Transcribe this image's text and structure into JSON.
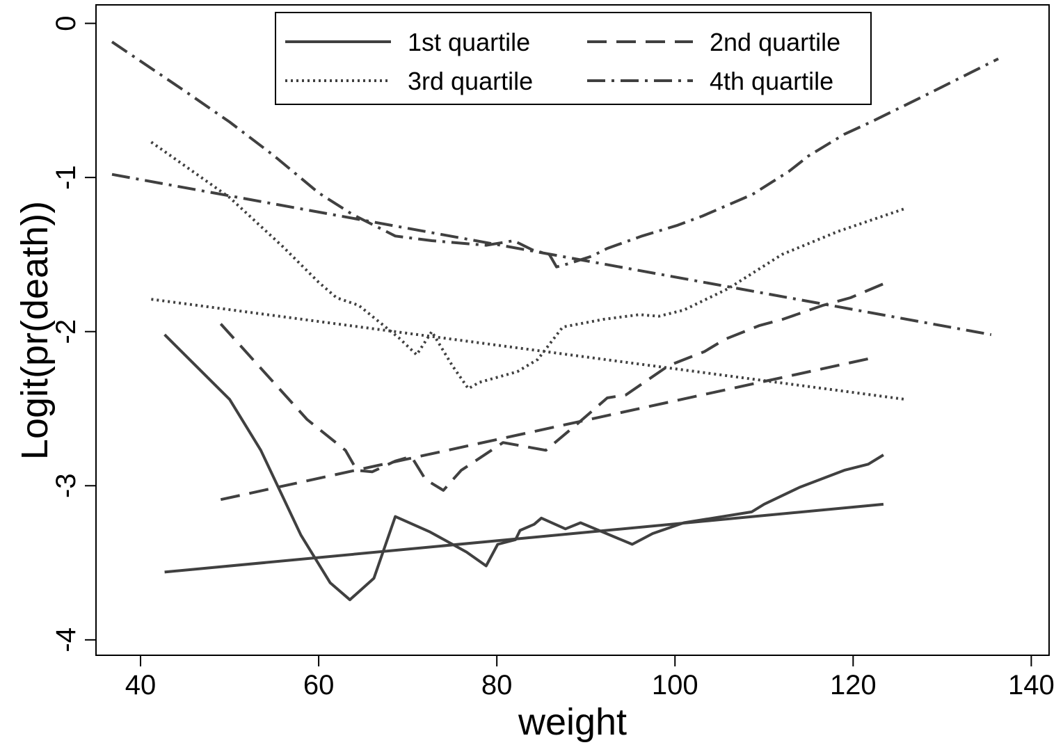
{
  "chart_data": {
    "type": "line",
    "xlabel": "weight",
    "ylabel": "Logit(pr(death))",
    "xlim": [
      35,
      142
    ],
    "ylim": [
      -4.1,
      0.12
    ],
    "xticks": [
      40,
      60,
      80,
      100,
      120,
      140
    ],
    "yticks": [
      0,
      -1,
      -2,
      -3,
      -4
    ],
    "legend": {
      "placement": "top",
      "entries": [
        "1st quartile",
        "2nd quartile",
        "3rd quartile",
        "4th quartile"
      ]
    },
    "grid": false,
    "line_color": "#404040",
    "series": [
      {
        "name": "1st quartile",
        "style": "solid",
        "curves": [
          {
            "x": [
              42.7,
              50,
              53.5,
              58,
              61.3,
              63.5,
              66.2,
              68.6,
              72.5,
              76.6,
              78.8,
              80.1,
              82.1,
              82.6,
              84.2,
              85,
              87.7,
              89.4,
              95.2,
              97.5,
              101,
              108.6,
              110,
              114,
              119,
              121.7,
              123.4
            ],
            "y": [
              -2.02,
              -2.44,
              -2.77,
              -3.32,
              -3.63,
              -3.74,
              -3.6,
              -3.2,
              -3.3,
              -3.43,
              -3.52,
              -3.38,
              -3.35,
              -3.29,
              -3.25,
              -3.21,
              -3.28,
              -3.24,
              -3.38,
              -3.31,
              -3.24,
              -3.17,
              -3.12,
              -3.01,
              -2.9,
              -2.86,
              -2.8
            ]
          },
          {
            "x": [
              42.7,
              123.4
            ],
            "y": [
              -3.56,
              -3.12
            ]
          }
        ]
      },
      {
        "name": "2nd quartile",
        "style": "dashed",
        "curves": [
          {
            "x": [
              49,
              58.7,
              63,
              64.3,
              66,
              68.6,
              70.4,
              72,
              74,
              76,
              80.7,
              85.5,
              89,
              92.4,
              94.5,
              99.3,
              103.3,
              105.6,
              109.5,
              112.1,
              116.6,
              119.7,
              123.4
            ],
            "y": [
              -1.95,
              -2.57,
              -2.77,
              -2.9,
              -2.91,
              -2.84,
              -2.81,
              -2.96,
              -3.03,
              -2.9,
              -2.72,
              -2.77,
              -2.6,
              -2.43,
              -2.41,
              -2.22,
              -2.13,
              -2.05,
              -1.96,
              -1.92,
              -1.83,
              -1.78,
              -1.69
            ]
          },
          {
            "x": [
              49,
              122.2
            ],
            "y": [
              -3.09,
              -2.17
            ]
          }
        ]
      },
      {
        "name": "3rd quartile",
        "style": "dotted",
        "curves": [
          {
            "x": [
              41.2,
              50,
              56,
              60,
              62,
              64.5,
              69,
              71,
              72.7,
              75,
              76.8,
              78,
              82.3,
              84.6,
              87.4,
              92,
              96,
              98.2,
              101,
              106,
              112,
              118.3,
              125.9
            ],
            "y": [
              -0.77,
              -1.13,
              -1.45,
              -1.68,
              -1.78,
              -1.83,
              -2.04,
              -2.15,
              -2.0,
              -2.22,
              -2.37,
              -2.33,
              -2.26,
              -2.18,
              -1.97,
              -1.92,
              -1.89,
              -1.9,
              -1.86,
              -1.72,
              -1.5,
              -1.35,
              -1.2
            ]
          },
          {
            "x": [
              41.2,
              125.9
            ],
            "y": [
              -1.79,
              -2.44
            ]
          }
        ]
      },
      {
        "name": "4th quartile",
        "style": "dashdot",
        "curves": [
          {
            "x": [
              36.8,
              45,
              50,
              55,
              60,
              63.8,
              68.6,
              72.7,
              78.8,
              81.9,
              84,
              85.9,
              86.7,
              88,
              90.7,
              92.4,
              96.3,
              100.3,
              103.1,
              108.7,
              112.8,
              115,
              119,
              122,
              128,
              136.3
            ],
            "y": [
              -0.12,
              -0.44,
              -0.64,
              -0.86,
              -1.1,
              -1.24,
              -1.38,
              -1.41,
              -1.44,
              -1.41,
              -1.47,
              -1.5,
              -1.58,
              -1.56,
              -1.51,
              -1.46,
              -1.38,
              -1.31,
              -1.25,
              -1.11,
              -0.96,
              -0.86,
              -0.72,
              -0.64,
              -0.47,
              -0.23
            ]
          },
          {
            "x": [
              36.8,
              135.5
            ],
            "y": [
              -0.98,
              -2.02
            ]
          }
        ]
      }
    ]
  }
}
